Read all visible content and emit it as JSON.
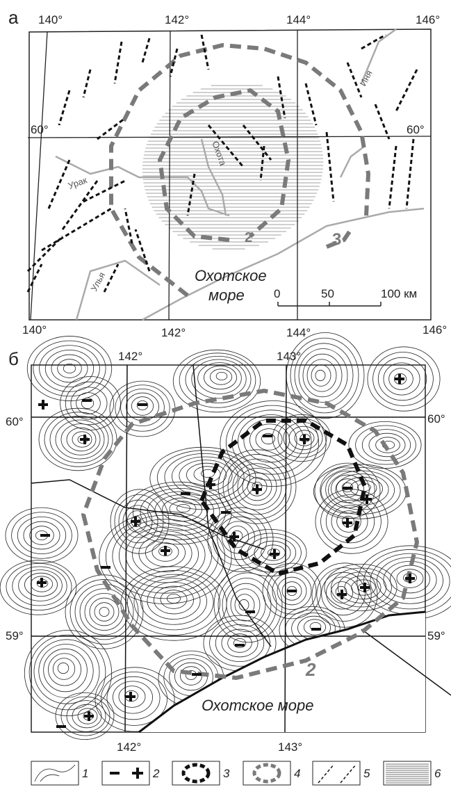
{
  "panel_a": {
    "label": "а",
    "top_lon": [
      "140°",
      "142°",
      "144°",
      "146°"
    ],
    "bottom_lon": [
      "140°",
      "142°",
      "144°",
      "146°"
    ],
    "lat_left": "60°",
    "lat_right": "60°",
    "rivers": [
      "Иня",
      "Урак",
      "Охота",
      "Улья"
    ],
    "sea": [
      "Охотское",
      "море"
    ],
    "zone_labels": [
      "3",
      "2"
    ],
    "scale": [
      "0",
      "50",
      "100 км"
    ]
  },
  "panel_b": {
    "label": "б",
    "top_lon": [
      "142°",
      "143°"
    ],
    "bottom_lon": [
      "142°",
      "143°"
    ],
    "lat_60": [
      "60°",
      "60°"
    ],
    "lat_59": [
      "59°",
      "59°"
    ],
    "sea": "Охотское море",
    "zone_label": "2"
  },
  "legend": [
    "1",
    "2",
    "3",
    "4",
    "5",
    "6"
  ]
}
